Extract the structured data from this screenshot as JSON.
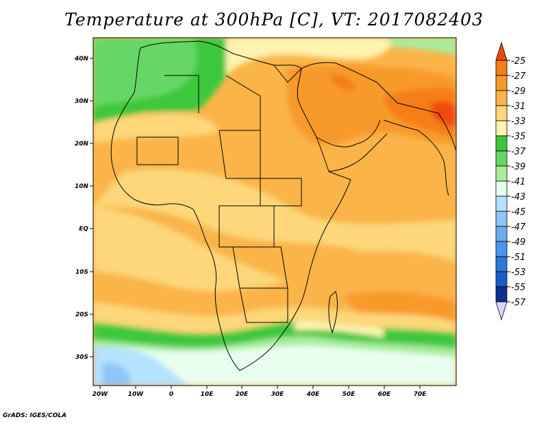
{
  "title": "Temperature at 300hPa [C], VT: 2017082403",
  "credit": "GrADS: IGES/COLA",
  "lat_labels": [
    "40N",
    "30N",
    "20N",
    "10N",
    "EQ",
    "10S",
    "20S",
    "30S"
  ],
  "lon_labels": [
    "20W",
    "10W",
    "0",
    "10E",
    "20E",
    "30E",
    "40E",
    "50E",
    "60E",
    "70E"
  ],
  "colorbar": {
    "labels": [
      "-25",
      "-27",
      "-29",
      "-31",
      "-33",
      "-35",
      "-37",
      "-39",
      "-41",
      "-43",
      "-45",
      "-47",
      "-49",
      "-51",
      "-53",
      "-55",
      "-57"
    ],
    "colors": [
      "#f04a0a",
      "#f57e15",
      "#f89a2a",
      "#fab448",
      "#fdd77a",
      "#fef3b0",
      "#3ec73e",
      "#66d766",
      "#a8ec9c",
      "#e8fff0",
      "#b4e2ff",
      "#8cc6f6",
      "#6aaef2",
      "#4a96ec",
      "#2a7ad8",
      "#1660c4",
      "#0c2f8e",
      "#0a0a64"
    ]
  }
}
